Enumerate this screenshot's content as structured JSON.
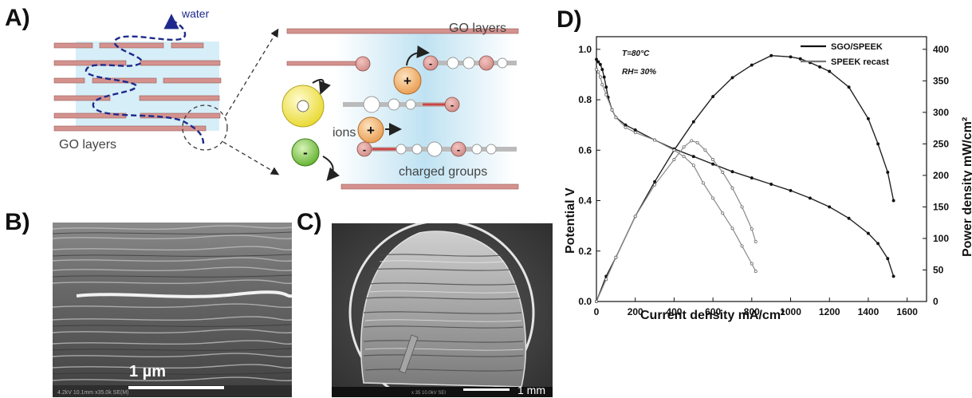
{
  "panel_labels": {
    "a": "A)",
    "b": "B)",
    "c": "C)",
    "d": "D)"
  },
  "panel_a": {
    "water_label": "water",
    "go_layers_left": "GO layers",
    "go_layers_right": "GO layers",
    "ions_label": "ions",
    "charged_groups_label": "charged groups",
    "plus_sign": "+",
    "minus_sign": "-",
    "colors": {
      "layer": "#d4928e",
      "water_path": "#1f2a8c",
      "channel": "#bfe2f2",
      "ion_yellow": "#f7f05a",
      "ion_orange": "#f2b06a",
      "ion_green": "#7ec84a"
    }
  },
  "panel_b": {
    "scale_label": "1 µm",
    "metadata_text": "4.2kV 10.1mm x35.0k SE(M)"
  },
  "panel_c": {
    "scale_label": "1 mm",
    "metadata_text": "x 35    10.0kV SEI"
  },
  "chart_data": {
    "type": "line",
    "xlabel": "Current density mA/cm²",
    "ylabel": "Potential V",
    "y2label": "Power density mW/cm²",
    "xlim": [
      0,
      1700
    ],
    "ylim": [
      0.0,
      1.05
    ],
    "y2lim": [
      0,
      420
    ],
    "xticks": [
      0,
      200,
      400,
      600,
      800,
      1000,
      1200,
      1400,
      1600
    ],
    "yticks": [
      0.0,
      0.2,
      0.4,
      0.6,
      0.8,
      1.0
    ],
    "y2ticks": [
      0,
      50,
      100,
      150,
      200,
      250,
      300,
      350,
      400
    ],
    "annotations": [
      "T=80°C",
      "RH= 30%"
    ],
    "legend_position": "top-right",
    "series": [
      {
        "name": "SGO/SPEEK",
        "kind": "polarization",
        "axis": "left",
        "style": "filled",
        "x": [
          0,
          10,
          20,
          30,
          40,
          50,
          60,
          80,
          100,
          150,
          200,
          300,
          400,
          500,
          600,
          700,
          800,
          900,
          1000,
          1100,
          1200,
          1300,
          1400,
          1450,
          1500,
          1530
        ],
        "y": [
          0.96,
          0.95,
          0.94,
          0.92,
          0.89,
          0.85,
          0.81,
          0.76,
          0.73,
          0.7,
          0.68,
          0.64,
          0.605,
          0.575,
          0.545,
          0.515,
          0.49,
          0.465,
          0.44,
          0.41,
          0.375,
          0.33,
          0.27,
          0.23,
          0.17,
          0.1
        ]
      },
      {
        "name": "SGO/SPEEK",
        "kind": "power",
        "axis": "right",
        "style": "filled",
        "x": [
          0,
          50,
          100,
          200,
          300,
          400,
          500,
          600,
          700,
          800,
          900,
          1000,
          1050,
          1100,
          1150,
          1200,
          1300,
          1400,
          1450,
          1500,
          1530
        ],
        "y": [
          0,
          40,
          70,
          135,
          190,
          240,
          285,
          325,
          355,
          375,
          390,
          388,
          385,
          379,
          372,
          365,
          340,
          290,
          250,
          205,
          160
        ]
      },
      {
        "name": "SPEEK recast",
        "kind": "polarization",
        "axis": "left",
        "style": "open",
        "x": [
          0,
          10,
          20,
          30,
          50,
          80,
          100,
          150,
          200,
          300,
          400,
          450,
          500,
          550,
          600,
          650,
          700,
          750,
          800,
          820
        ],
        "y": [
          0.92,
          0.91,
          0.89,
          0.86,
          0.82,
          0.76,
          0.73,
          0.69,
          0.67,
          0.64,
          0.6,
          0.575,
          0.54,
          0.47,
          0.41,
          0.35,
          0.29,
          0.22,
          0.15,
          0.12
        ]
      },
      {
        "name": "SPEEK recast",
        "kind": "power",
        "axis": "right",
        "style": "open",
        "x": [
          0,
          50,
          100,
          200,
          300,
          400,
          450,
          490,
          520,
          560,
          600,
          650,
          700,
          750,
          800,
          820
        ],
        "y": [
          0,
          35,
          70,
          135,
          185,
          225,
          245,
          255,
          252,
          240,
          225,
          205,
          180,
          150,
          115,
          95
        ]
      }
    ]
  }
}
